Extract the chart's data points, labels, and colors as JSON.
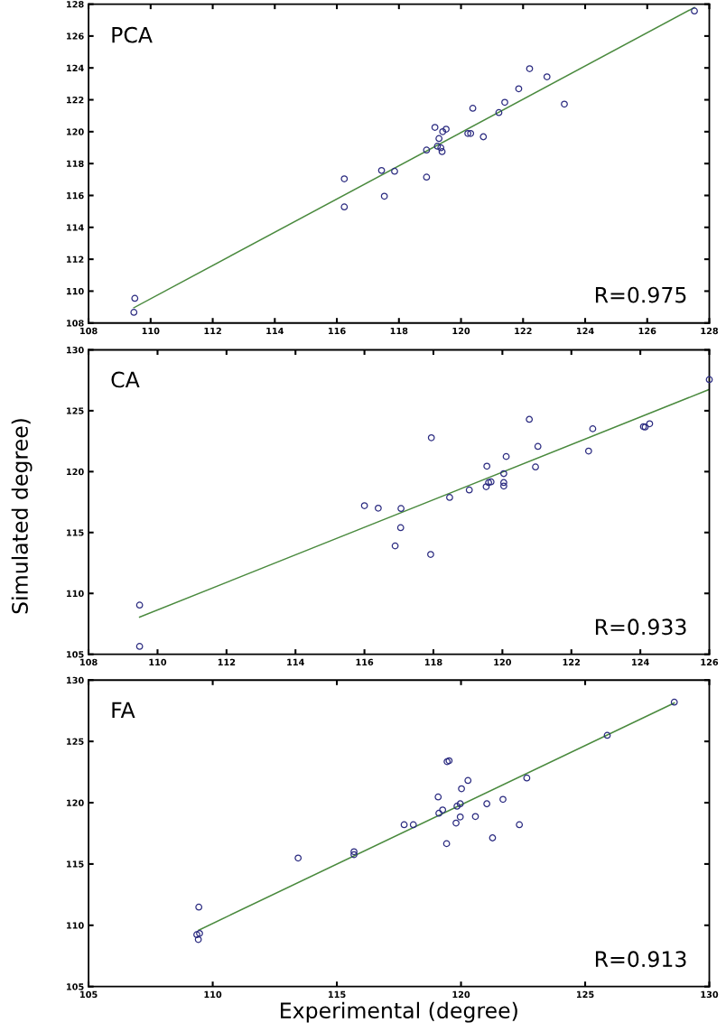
{
  "chart_data": [
    {
      "type": "scatter",
      "annotations": [
        "PCA",
        "R=0.975"
      ],
      "xlim": [
        108,
        128
      ],
      "xticks": [
        108,
        110,
        112,
        114,
        116,
        118,
        120,
        122,
        124,
        126,
        128
      ],
      "ylim": [
        108,
        128
      ],
      "yticks": [
        108,
        110,
        112,
        114,
        116,
        118,
        120,
        122,
        124,
        126,
        128
      ],
      "grid": false,
      "legend": false,
      "series": [
        {
          "marker": "circle",
          "color": "#2b2b80",
          "x": [
            109.49,
            109.46,
            116.24,
            116.24,
            117.44,
            117.86,
            117.53,
            118.89,
            118.89,
            119.16,
            119.29,
            119.24,
            119.35,
            119.39,
            119.41,
            119.52,
            120.22,
            120.31,
            120.38,
            120.72,
            121.22,
            121.41,
            121.86,
            122.21,
            122.77,
            123.33,
            127.52
          ],
          "values": [
            109.55,
            108.67,
            117.04,
            115.28,
            117.57,
            117.52,
            115.95,
            118.85,
            117.15,
            120.27,
            119.57,
            119.09,
            118.99,
            118.75,
            120.0,
            120.16,
            119.89,
            119.89,
            121.47,
            119.68,
            121.2,
            121.84,
            122.69,
            123.95,
            123.44,
            121.73,
            127.57
          ]
        },
        {
          "type": "line",
          "color": "#4a8a3e",
          "x": [
            109.46,
            127.52
          ],
          "values": [
            108.96,
            127.79
          ]
        }
      ]
    },
    {
      "type": "scatter",
      "annotations": [
        "CA",
        "R=0.933"
      ],
      "ylabel": "Simulated degree)",
      "xlim": [
        108,
        126
      ],
      "xticks": [
        108,
        110,
        112,
        114,
        116,
        118,
        120,
        122,
        124,
        126
      ],
      "ylim": [
        105,
        130
      ],
      "yticks": [
        105,
        110,
        115,
        120,
        125,
        130
      ],
      "grid": false,
      "legend": false,
      "series": [
        {
          "marker": "circle",
          "color": "#2b2b80",
          "x": [
            109.48,
            109.48,
            116.0,
            116.4,
            117.06,
            117.05,
            116.89,
            117.94,
            117.92,
            118.47,
            119.04,
            119.53,
            119.55,
            119.6,
            119.67,
            120.04,
            120.04,
            120.04,
            120.11,
            120.78,
            120.96,
            121.03,
            122.5,
            122.62,
            124.09,
            124.14,
            124.27,
            126.0
          ],
          "values": [
            109.04,
            105.65,
            117.2,
            117.0,
            116.97,
            115.4,
            113.9,
            122.78,
            113.2,
            117.88,
            118.49,
            118.76,
            120.45,
            119.1,
            119.16,
            119.84,
            119.1,
            118.82,
            121.24,
            124.29,
            120.38,
            122.07,
            121.69,
            123.52,
            123.69,
            123.66,
            123.93,
            127.56
          ]
        },
        {
          "type": "line",
          "color": "#4a8a3e",
          "x": [
            109.48,
            126.0
          ],
          "values": [
            108.05,
            126.75
          ]
        }
      ]
    },
    {
      "type": "scatter",
      "annotations": [
        "FA",
        "R=0.913"
      ],
      "xlabel": "Experimental (degree)",
      "xlim": [
        105,
        130
      ],
      "xticks": [
        105,
        110,
        115,
        120,
        125,
        130
      ],
      "ylim": [
        105,
        130
      ],
      "yticks": [
        105,
        110,
        115,
        120,
        125,
        130
      ],
      "grid": false,
      "legend": false,
      "series": [
        {
          "marker": "circle",
          "color": "#2b2b80",
          "x": [
            109.44,
            109.36,
            109.47,
            109.42,
            113.44,
            115.69,
            115.69,
            117.71,
            118.08,
            119.42,
            119.08,
            119.11,
            119.26,
            119.44,
            119.52,
            119.8,
            119.84,
            119.97,
            119.97,
            120.02,
            120.28,
            120.58,
            121.04,
            121.27,
            121.69,
            122.35,
            122.65,
            125.89,
            128.59
          ],
          "values": [
            111.48,
            109.24,
            109.34,
            108.84,
            115.49,
            116.0,
            115.76,
            118.2,
            118.2,
            116.66,
            120.47,
            119.14,
            119.41,
            123.35,
            123.42,
            118.34,
            119.71,
            119.91,
            118.84,
            121.14,
            121.81,
            118.87,
            119.91,
            117.13,
            120.27,
            118.2,
            122.01,
            125.49,
            128.2
          ]
        },
        {
          "type": "line",
          "color": "#4a8a3e",
          "x": [
            109.44,
            128.59
          ],
          "values": [
            109.61,
            128.13
          ]
        }
      ]
    }
  ]
}
